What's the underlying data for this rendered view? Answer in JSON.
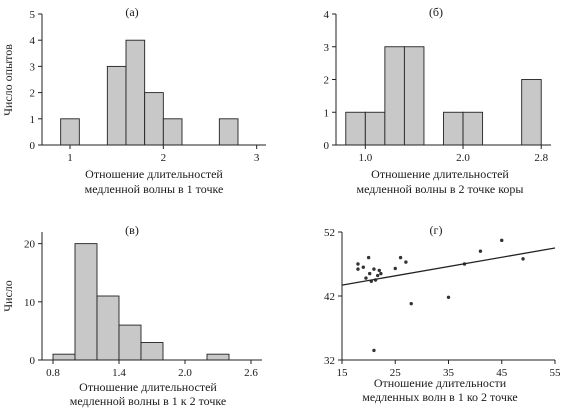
{
  "chart_data": [
    {
      "type": "bar",
      "title": "(а)",
      "xlabel": [
        "Отношение длительностей",
        "медленной волны в 1 точке"
      ],
      "ylabel": "Число опытов",
      "xlim": [
        0.7,
        3.1
      ],
      "ylim": [
        0,
        5
      ],
      "xticks": [
        "1",
        "2",
        "3"
      ],
      "yticks": [
        "0",
        "1",
        "2",
        "3",
        "4",
        "5"
      ],
      "bins": [
        {
          "x0": 0.9,
          "x1": 1.1,
          "count": 1
        },
        {
          "x0": 1.4,
          "x1": 1.6,
          "count": 3
        },
        {
          "x0": 1.6,
          "x1": 1.8,
          "count": 4
        },
        {
          "x0": 1.8,
          "x1": 2.0,
          "count": 2
        },
        {
          "x0": 2.0,
          "x1": 2.2,
          "count": 1
        },
        {
          "x0": 2.6,
          "x1": 2.8,
          "count": 1
        }
      ]
    },
    {
      "type": "bar",
      "title": "(б)",
      "xlabel": [
        "Отношение длительностей",
        "медленной волны в 2 точке коры"
      ],
      "ylabel": "",
      "xlim": [
        0.7,
        2.9
      ],
      "ylim": [
        0,
        4
      ],
      "xticks": [
        "1.0",
        "2.0",
        "2.8"
      ],
      "yticks": [
        "0",
        "1",
        "2",
        "3",
        "4"
      ],
      "bins": [
        {
          "x0": 0.8,
          "x1": 1.0,
          "count": 1
        },
        {
          "x0": 1.0,
          "x1": 1.2,
          "count": 1
        },
        {
          "x0": 1.2,
          "x1": 1.4,
          "count": 3
        },
        {
          "x0": 1.4,
          "x1": 1.6,
          "count": 3
        },
        {
          "x0": 1.8,
          "x1": 2.0,
          "count": 1
        },
        {
          "x0": 2.0,
          "x1": 2.2,
          "count": 1
        },
        {
          "x0": 2.6,
          "x1": 2.8,
          "count": 2
        }
      ]
    },
    {
      "type": "bar",
      "title": "(в)",
      "xlabel": [
        "Отношение длительностей",
        "медленной волны в 1 к 2 точке"
      ],
      "ylabel": "Число",
      "xlim": [
        0.7,
        2.7
      ],
      "ylim": [
        0,
        22
      ],
      "xticks": [
        "0.8",
        "1.4",
        "2.0",
        "2.6"
      ],
      "yticks": [
        "0",
        "10",
        "20"
      ],
      "bins": [
        {
          "x0": 0.8,
          "x1": 1.0,
          "count": 1
        },
        {
          "x0": 1.0,
          "x1": 1.2,
          "count": 20
        },
        {
          "x0": 1.2,
          "x1": 1.4,
          "count": 11
        },
        {
          "x0": 1.4,
          "x1": 1.6,
          "count": 6
        },
        {
          "x0": 1.6,
          "x1": 1.8,
          "count": 3
        },
        {
          "x0": 2.2,
          "x1": 2.4,
          "count": 1
        }
      ]
    },
    {
      "type": "scatter",
      "title": "(г)",
      "xlabel": [
        "Отношение длительности",
        "медленных волн в 1 ко 2 точке"
      ],
      "ylabel": "",
      "xlim": [
        15,
        55
      ],
      "ylim": [
        32,
        52
      ],
      "xticks": [
        "15",
        "25",
        "35",
        "45",
        "55"
      ],
      "yticks": [
        "32",
        "42",
        "52"
      ],
      "points": [
        [
          18,
          47
        ],
        [
          18,
          46.2
        ],
        [
          19,
          46.5
        ],
        [
          19.5,
          44.8
        ],
        [
          20,
          48
        ],
        [
          20.2,
          45.5
        ],
        [
          20.5,
          44.3
        ],
        [
          21,
          46.2
        ],
        [
          21,
          33.5
        ],
        [
          21.3,
          44.5
        ],
        [
          21.7,
          45.2
        ],
        [
          22,
          46
        ],
        [
          22.3,
          45.5
        ],
        [
          25,
          46.3
        ],
        [
          26,
          48
        ],
        [
          27,
          47.3
        ],
        [
          28,
          40.8
        ],
        [
          35,
          41.8
        ],
        [
          38,
          47
        ],
        [
          41,
          49
        ],
        [
          45,
          50.7
        ],
        [
          49,
          47.8
        ]
      ],
      "fit_line": {
        "x": [
          15,
          55
        ],
        "y": [
          43.7,
          49.5
        ]
      }
    }
  ]
}
